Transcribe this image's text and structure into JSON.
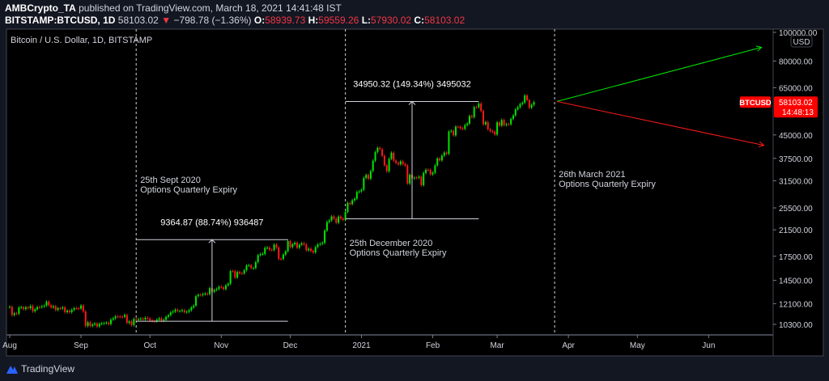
{
  "header": {
    "publisher": "AMBCrypto_TA",
    "published_text": "published on TradingView.com, March 18, 2021 14:41:48 IST",
    "symbol": "BITSTAMP:BTCUSD, 1D",
    "last": "58103.02",
    "change": "−798.78 (−1.36%)",
    "o_label": "O:",
    "o": "58939.73",
    "h_label": "H:",
    "h": "59559.26",
    "l_label": "L:",
    "l": "57930.02",
    "c_label": "C:",
    "c": "58103.02"
  },
  "footer": {
    "brand": "TradingView"
  },
  "colors": {
    "up": "#00e600",
    "down": "#ff1a1a",
    "background": "#000000",
    "panel": "#131722",
    "accent_red": "#f23645"
  },
  "chart_data": {
    "type": "candlestick",
    "title": "Bitcoin / U.S. Dollar, 1D, BITSTAMP",
    "y_scale": "log",
    "ylim": [
      10000,
      105000
    ],
    "currency": "USD",
    "y_ticks": [
      "100000.00",
      "80000.00",
      "65000.00",
      "45000.00",
      "37500.00",
      "31500.00",
      "25500.00",
      "21500.00",
      "17500.00",
      "14500.00",
      "12100.00",
      "10300.00"
    ],
    "x_ticks": [
      {
        "label": "Aug",
        "date": "2020-08-01"
      },
      {
        "label": "Sep",
        "date": "2020-09-01"
      },
      {
        "label": "Oct",
        "date": "2020-10-01"
      },
      {
        "label": "Nov",
        "date": "2020-11-01"
      },
      {
        "label": "Dec",
        "date": "2020-12-01"
      },
      {
        "label": "2021",
        "date": "2021-01-01"
      },
      {
        "label": "Feb",
        "date": "2021-02-01"
      },
      {
        "label": "Mar",
        "date": "2021-03-01"
      },
      {
        "label": "Apr",
        "date": "2021-04-01"
      },
      {
        "label": "May",
        "date": "2021-05-01"
      },
      {
        "label": "Jun",
        "date": "2021-06-01"
      }
    ],
    "xlim": [
      "2020-07-30",
      "2021-06-30"
    ],
    "series_start": "2020-08-01",
    "daily_close": [
      11800,
      11070,
      11230,
      11190,
      11740,
      11770,
      11600,
      11760,
      11680,
      11880,
      11400,
      11580,
      11780,
      11770,
      11860,
      11910,
      12290,
      11960,
      11750,
      11860,
      11520,
      11680,
      11650,
      11760,
      11330,
      11460,
      11320,
      11530,
      11680,
      11660,
      11650,
      11920,
      11390,
      10170,
      10470,
      10170,
      10280,
      10370,
      10130,
      10340,
      10370,
      10400,
      10440,
      10320,
      10680,
      10790,
      10950,
      10940,
      10930,
      10920,
      11080,
      10420,
      10540,
      10240,
      10740,
      10690,
      10730,
      10770,
      10700,
      10840,
      10780,
      10620,
      10570,
      10550,
      10670,
      10790,
      10600,
      10670,
      10920,
      11060,
      11300,
      11380,
      11540,
      11430,
      11430,
      11500,
      11320,
      11360,
      11500,
      11750,
      11910,
      12820,
      12970,
      12930,
      13030,
      13080,
      13030,
      13650,
      13270,
      13460,
      13560,
      13800,
      13740,
      13550,
      13950,
      14130,
      15590,
      15580,
      14830,
      15480,
      15330,
      15310,
      15700,
      16280,
      16320,
      15960,
      15960,
      16720,
      17650,
      17800,
      17820,
      18680,
      18710,
      18420,
      18370,
      19160,
      18730,
      17150,
      17140,
      17720,
      18180,
      19700,
      18790,
      19200,
      19450,
      18700,
      19150,
      19360,
      19170,
      18320,
      18550,
      18250,
      18030,
      18800,
      19170,
      19280,
      19430,
      21370,
      22850,
      23130,
      23860,
      23470,
      22720,
      23840,
      23480,
      23240,
      24710,
      26490,
      26270,
      27040,
      27370,
      28840,
      29000,
      29370,
      32190,
      32960,
      32000,
      33980,
      36830,
      39370,
      40670,
      40240,
      38240,
      35540,
      33910,
      37390,
      39160,
      36830,
      36180,
      35790,
      36630,
      35890,
      35470,
      30830,
      33000,
      32090,
      32280,
      32250,
      32510,
      30430,
      33470,
      34300,
      34270,
      33110,
      33530,
      35510,
      37470,
      36920,
      38290,
      39230,
      38850,
      46200,
      46480,
      44840,
      47970,
      47910,
      47370,
      47190,
      48590,
      49150,
      52150,
      51680,
      55890,
      55840,
      57410,
      54200,
      48880,
      49710,
      47040,
      46340,
      46190,
      45140,
      49630,
      48380,
      50540,
      48560,
      48930,
      48890,
      50970,
      52380,
      54880,
      55850,
      57250,
      57830,
      61190,
      59000,
      55630,
      56900,
      58103
    ],
    "last_price_label": {
      "symbol": "BTCUSD",
      "price": "58103.02",
      "countdown": "14:48:13"
    },
    "vertical_markers": [
      {
        "date": "2020-09-25",
        "lines": [
          "25th Sept 2020",
          "Options Quarterly Expiry"
        ]
      },
      {
        "date": "2020-12-25",
        "lines": [
          "25th December 2020",
          "Options Quarterly Expiry"
        ]
      },
      {
        "date": "2021-03-26",
        "lines": [
          "26th March 2021",
          "Options Quarterly Expiry"
        ]
      }
    ],
    "measurements": [
      {
        "from_date": "2020-09-25",
        "to_date": "2020-11-30",
        "low": 10550,
        "high": 19915,
        "label": "9364.87 (88.74%) 936487"
      },
      {
        "from_date": "2020-12-25",
        "to_date": "2021-02-21",
        "low": 23430,
        "high": 58380,
        "label": "34950.32 (149.34%) 3495032"
      }
    ],
    "projections": [
      {
        "color": "green",
        "from": {
          "date": "2021-03-27",
          "price": 58400
        },
        "to": {
          "date": "2021-06-24",
          "price": 89000
        }
      },
      {
        "color": "red",
        "from": {
          "date": "2021-03-27",
          "price": 58400
        },
        "to": {
          "date": "2021-06-25",
          "price": 41500
        }
      }
    ]
  }
}
